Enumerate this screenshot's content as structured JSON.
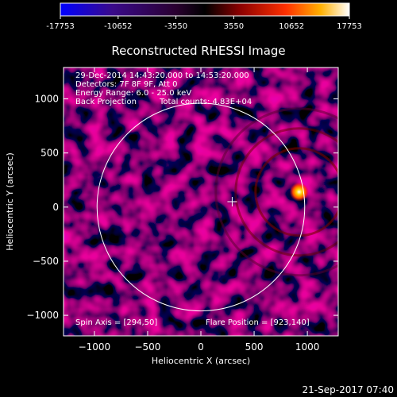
{
  "colorbar": {
    "tick_labels": [
      "-17753",
      "-10652",
      "-3550",
      "3550",
      "10652",
      "17753"
    ],
    "range": [
      -17753,
      17753
    ]
  },
  "chart_data": {
    "type": "heatmap",
    "title": "Reconstructed RHESSI Image",
    "xlabel": "Heliocentric X (arcsec)",
    "ylabel": "Heliocentric Y (arcsec)",
    "xlim": [
      -1290,
      1290
    ],
    "ylim": [
      -1190,
      1290
    ],
    "x_ticks": [
      -1000,
      -500,
      0,
      500,
      1000
    ],
    "x_tick_labels": [
      "−1000",
      "−500",
      "0",
      "500",
      "1000"
    ],
    "y_ticks": [
      -1000,
      -500,
      0,
      500,
      1000
    ],
    "y_tick_labels": [
      "−1000",
      "−500",
      "0",
      "500",
      "1000"
    ],
    "solar_disk": {
      "center": [
        0,
        0
      ],
      "radius": 975
    },
    "spin_axis": [
      294,
      50
    ],
    "flare_position": [
      923,
      140
    ],
    "peak_value": 17753,
    "colormap": [
      "#0000ff",
      "#3a0a6a",
      "#1a001a",
      "#000000",
      "#8a0000",
      "#ff2000",
      "#ff9000",
      "#ffffff"
    ]
  },
  "info_lines": [
    "29-Dec-2014 14:43:20.000 to 14:53:20.000",
    "Detectors: 7F 8F 9F, Att 0",
    "Energy Range: 6.0 - 25.0 keV",
    "Back Projection",
    "Total counts: 4.83E+04"
  ],
  "spin_axis_text": "Spin Axis = [294,50]",
  "flare_position_text": "Flare Position = [923,140]",
  "footer_timestamp": "21-Sep-2017 07:40"
}
